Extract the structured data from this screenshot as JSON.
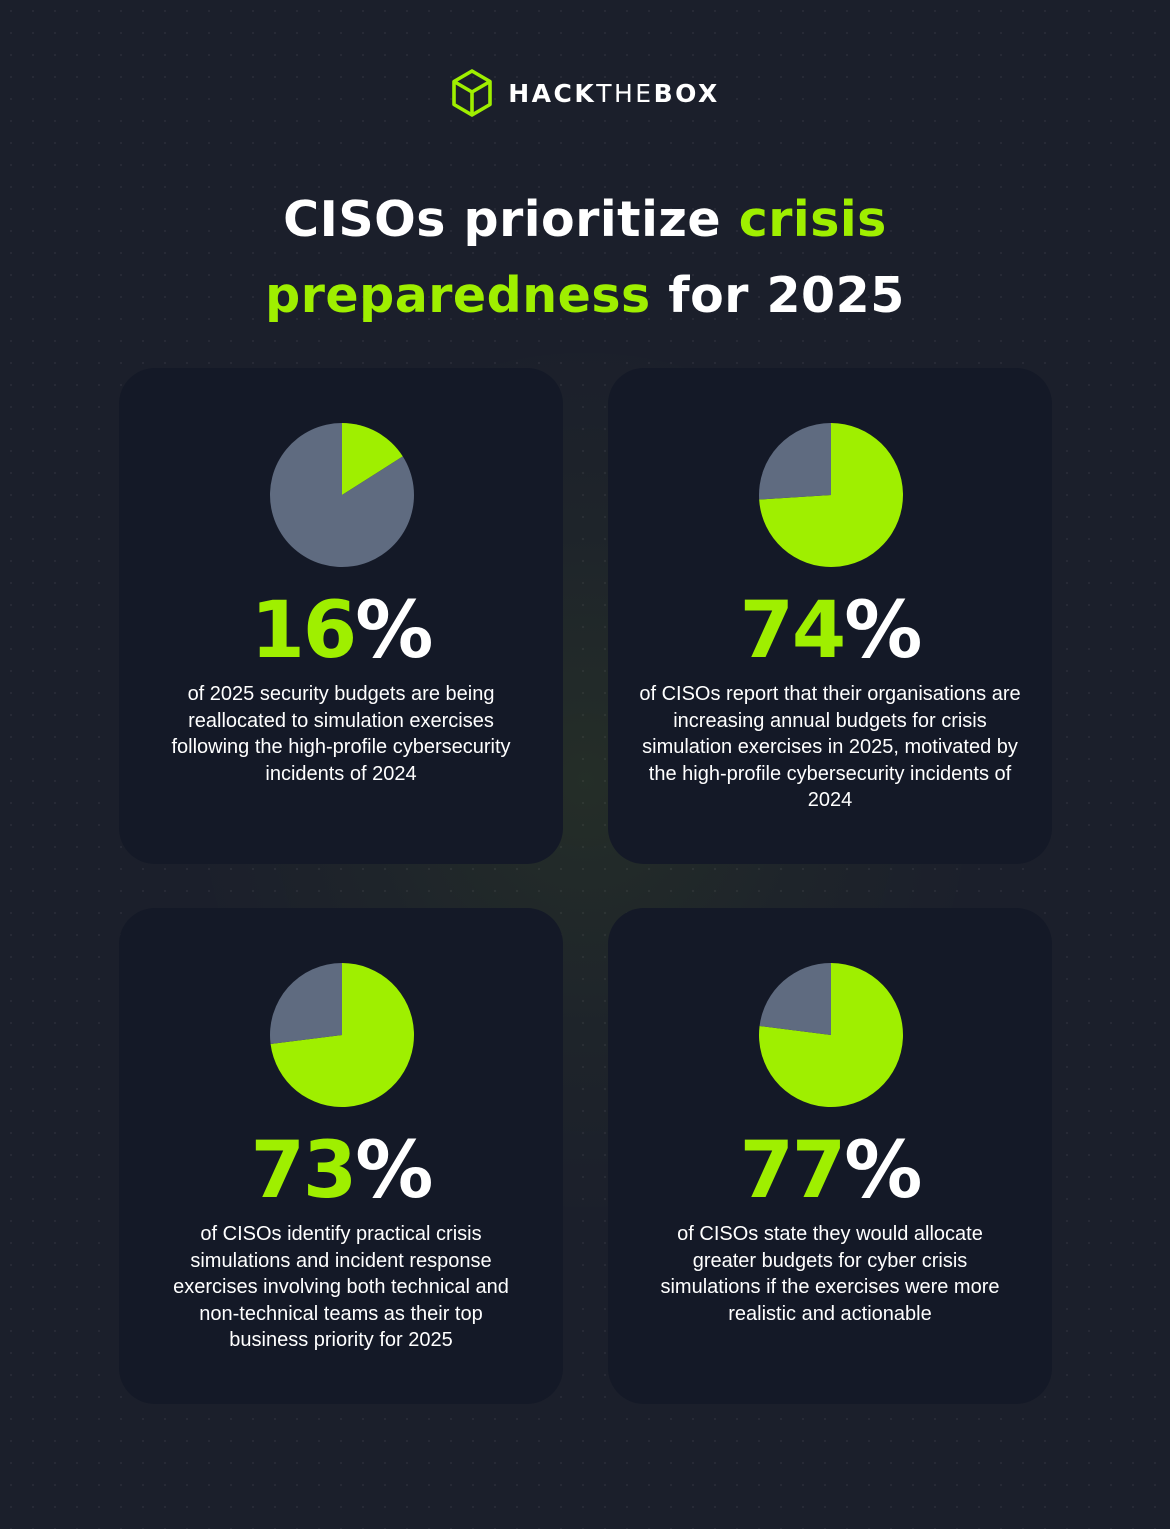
{
  "brand": {
    "name_bold": "HACK",
    "name_light": "THE",
    "name_bold_2": "BOX",
    "accent_color": "#9fef00"
  },
  "title": {
    "part1": "CISOs prioritize ",
    "accent1": "crisis",
    "accent2": "preparedness",
    "part2": " for 2025"
  },
  "colors": {
    "highlight": "#9fef00",
    "remainder": "#5f6b80",
    "card_bg": "#141927",
    "page_bg": "#1b1f2b"
  },
  "chart_data": [
    {
      "type": "pie",
      "values": [
        16,
        84
      ],
      "stat_number": "16",
      "stat_symbol": "%",
      "description": "of 2025 security budgets are being reallocated to simulation exercises following the high-profile cybersecurity incidents of 2024"
    },
    {
      "type": "pie",
      "values": [
        74,
        26
      ],
      "stat_number": "74",
      "stat_symbol": "%",
      "description": "of CISOs report that their organisations are increasing annual budgets for crisis simulation exercises in 2025, motivated by the high-profile cybersecurity incidents of 2024"
    },
    {
      "type": "pie",
      "values": [
        73,
        27
      ],
      "stat_number": "73",
      "stat_symbol": "%",
      "description": "of CISOs identify practical crisis simulations and incident response exercises involving both technical and non-technical teams as their top business priority for 2025"
    },
    {
      "type": "pie",
      "values": [
        77,
        23
      ],
      "stat_number": "77",
      "stat_symbol": "%",
      "description": "of CISOs state they would allocate greater budgets for cyber crisis simulations if the exercises were more realistic and actionable"
    }
  ]
}
